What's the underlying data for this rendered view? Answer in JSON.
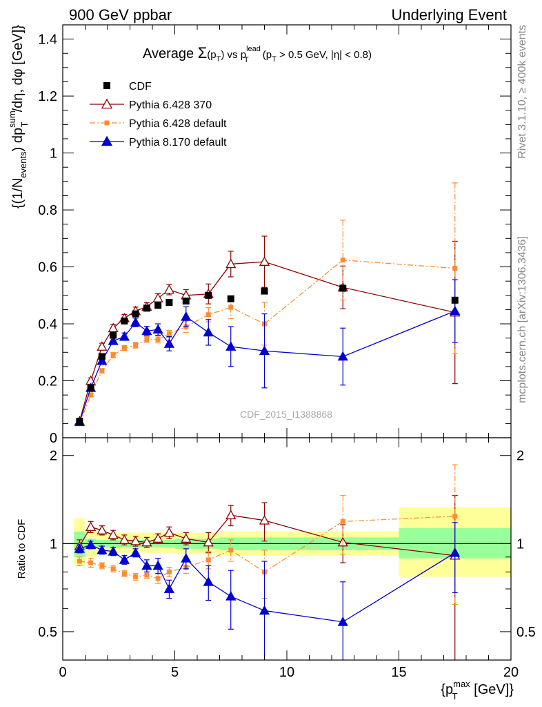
{
  "header": {
    "left": "900 GeV ppbar",
    "right": "Underlying Event"
  },
  "side_labels": {
    "rivet": "Rivet 3.1.10, ≥ 400k events",
    "mcplots": "mcplots.cern.ch [arXiv:1306.3436]"
  },
  "chart_data": [
    {
      "type": "line",
      "panel": "main",
      "title_parts": {
        "a": "Average ",
        "sigma": "Σ",
        "b": "(p",
        "sub_t": "T",
        "c": ") vs p",
        "sup_lead": "lead",
        "sub_t2": "T",
        "d": " (p",
        "sub_t3": "T",
        "e": " > 0.5 GeV, |η| < 0.8)"
      },
      "ylabel_parts": {
        "a": "{(1/N",
        "sub_events": "events",
        "b": ") dp",
        "sup_sum": "sum",
        "sub_t": "T",
        "c": "/dη, dφ [GeV]}"
      },
      "watermark": "CDF_2015_I1388868",
      "xlim": [
        0,
        20
      ],
      "ylim": [
        0,
        1.45
      ],
      "yticks": [
        0,
        0.2,
        0.4,
        0.6,
        0.8,
        1,
        1.2,
        1.4
      ],
      "ytick_labels": [
        "0",
        "0.2",
        "0.4",
        "0.6",
        "0.8",
        "1",
        "1.2",
        "1.4"
      ],
      "legend_position": "top-left",
      "series": [
        {
          "name": "CDF",
          "color": "#000000",
          "marker": "square",
          "line": "none",
          "x": [
            0.75,
            1.25,
            1.75,
            2.25,
            2.75,
            3.25,
            3.75,
            4.25,
            4.75,
            5.5,
            6.5,
            7.5,
            9,
            12.5,
            17.5
          ],
          "y": [
            0.058,
            0.175,
            0.285,
            0.36,
            0.41,
            0.435,
            0.455,
            0.465,
            0.475,
            0.48,
            0.5,
            0.488,
            0.515,
            0.525,
            0.483
          ],
          "err": [
            0,
            0,
            0,
            0,
            0,
            0,
            0,
            0,
            0,
            0,
            0,
            0,
            0,
            0,
            0
          ]
        },
        {
          "name": "Pythia 6.428 370",
          "color": "#8b0000",
          "marker": "open-triangle",
          "line": "solid",
          "x": [
            0.75,
            1.25,
            1.75,
            2.25,
            2.75,
            3.25,
            3.75,
            4.25,
            4.75,
            5.5,
            6.5,
            7.5,
            9,
            12.5,
            17.5
          ],
          "y": [
            0.058,
            0.2,
            0.32,
            0.385,
            0.42,
            0.445,
            0.46,
            0.49,
            0.52,
            0.5,
            0.505,
            0.61,
            0.618,
            0.528,
            0.44
          ],
          "err": [
            0.005,
            0.01,
            0.012,
            0.013,
            0.013,
            0.014,
            0.014,
            0.016,
            0.018,
            0.02,
            0.035,
            0.045,
            0.09,
            0.075,
            0.25
          ]
        },
        {
          "name": "Pythia 6.428 default",
          "color": "#ff8c2e",
          "marker": "square",
          "line": "dashdot",
          "x": [
            0.75,
            1.25,
            1.75,
            2.25,
            2.75,
            3.25,
            3.75,
            4.25,
            4.75,
            5.5,
            6.5,
            7.5,
            9,
            12.5,
            17.5
          ],
          "y": [
            0.05,
            0.15,
            0.235,
            0.29,
            0.315,
            0.325,
            0.345,
            0.345,
            0.365,
            0.39,
            0.432,
            0.458,
            0.4,
            0.624,
            0.595
          ],
          "err": [
            0.003,
            0.006,
            0.008,
            0.009,
            0.009,
            0.01,
            0.01,
            0.012,
            0.012,
            0.02,
            0.025,
            0.04,
            0.075,
            0.14,
            0.3
          ]
        },
        {
          "name": "Pythia 8.170 default",
          "color": "#0000d0",
          "marker": "filled-triangle",
          "line": "solid",
          "x": [
            0.75,
            1.25,
            1.75,
            2.25,
            2.75,
            3.25,
            3.75,
            4.25,
            4.75,
            5.5,
            6.5,
            7.5,
            9,
            12.5,
            17.5
          ],
          "y": [
            0.055,
            0.175,
            0.27,
            0.34,
            0.355,
            0.405,
            0.375,
            0.38,
            0.33,
            0.425,
            0.37,
            0.32,
            0.305,
            0.285,
            0.445
          ],
          "err": [
            0.004,
            0.008,
            0.01,
            0.012,
            0.013,
            0.015,
            0.016,
            0.02,
            0.025,
            0.035,
            0.045,
            0.07,
            0.13,
            0.1,
            0.11
          ]
        }
      ]
    },
    {
      "type": "line",
      "panel": "ratio",
      "ylabel": "Ratio to CDF",
      "xlabel_parts": {
        "a": "{p",
        "sup_max": "max",
        "sub_t": "T",
        "b": " [GeV]}"
      },
      "xlim": [
        0,
        20
      ],
      "ylim": [
        0.4,
        2.3
      ],
      "ylog": true,
      "xticks": [
        0,
        5,
        10,
        15,
        20
      ],
      "xtick_labels": [
        "0",
        "5",
        "10",
        "15",
        "20"
      ],
      "yticks": [
        0.5,
        1,
        2
      ],
      "ytick_labels": [
        "0.5",
        "1",
        "2"
      ],
      "reference_bands": {
        "bins": [
          [
            0.5,
            1
          ],
          [
            1,
            1.5
          ],
          [
            1.5,
            2
          ],
          [
            2,
            2.5
          ],
          [
            2.5,
            3
          ],
          [
            3,
            3.5
          ],
          [
            3.5,
            4
          ],
          [
            4,
            4.5
          ],
          [
            4.5,
            5
          ],
          [
            5,
            6
          ],
          [
            6,
            7
          ],
          [
            7,
            8
          ],
          [
            8,
            10
          ],
          [
            10,
            15
          ],
          [
            15,
            20
          ]
        ],
        "stat_low": [
          0.9,
          0.96,
          0.97,
          0.97,
          0.97,
          0.97,
          0.97,
          0.97,
          0.97,
          0.96,
          0.96,
          0.95,
          0.95,
          0.95,
          0.89
        ],
        "stat_high": [
          1.1,
          1.04,
          1.03,
          1.03,
          1.03,
          1.03,
          1.03,
          1.03,
          1.03,
          1.04,
          1.04,
          1.05,
          1.05,
          1.05,
          1.13
        ],
        "total_low": [
          0.84,
          0.9,
          0.92,
          0.92,
          0.93,
          0.93,
          0.93,
          0.93,
          0.93,
          0.92,
          0.92,
          0.91,
          0.91,
          0.91,
          0.77
        ],
        "total_high": [
          1.22,
          1.13,
          1.1,
          1.09,
          1.09,
          1.09,
          1.09,
          1.09,
          1.09,
          1.09,
          1.09,
          1.1,
          1.1,
          1.1,
          1.33
        ]
      },
      "series": [
        {
          "name": "Pythia 6.428 370",
          "color": "#8b0000",
          "marker": "open-triangle",
          "line": "solid",
          "x": [
            0.75,
            1.25,
            1.75,
            2.25,
            2.75,
            3.25,
            3.75,
            4.25,
            4.75,
            5.5,
            6.5,
            7.5,
            9,
            12.5,
            17.5
          ],
          "y": [
            0.98,
            1.14,
            1.11,
            1.07,
            1.03,
            1.02,
            1.01,
            1.04,
            1.09,
            1.04,
            1.01,
            1.25,
            1.2,
            1.01,
            0.91
          ],
          "err": [
            0.05,
            0.05,
            0.04,
            0.04,
            0.04,
            0.04,
            0.04,
            0.04,
            0.05,
            0.05,
            0.08,
            0.1,
            0.18,
            0.15,
            0.55
          ]
        },
        {
          "name": "Pythia 6.428 default",
          "color": "#ff8c2e",
          "marker": "square",
          "line": "dashdot",
          "x": [
            0.75,
            1.25,
            1.75,
            2.25,
            2.75,
            3.25,
            3.75,
            4.25,
            4.75,
            5.5,
            6.5,
            7.5,
            9,
            12.5,
            17.5
          ],
          "y": [
            0.87,
            0.86,
            0.84,
            0.82,
            0.79,
            0.77,
            0.78,
            0.76,
            0.8,
            0.83,
            0.88,
            0.95,
            0.8,
            1.19,
            1.24
          ],
          "err": [
            0.03,
            0.03,
            0.02,
            0.02,
            0.02,
            0.02,
            0.02,
            0.03,
            0.03,
            0.04,
            0.06,
            0.08,
            0.15,
            0.27,
            0.62
          ]
        },
        {
          "name": "Pythia 8.170 default",
          "color": "#0000d0",
          "marker": "filled-triangle",
          "line": "solid",
          "x": [
            0.75,
            1.25,
            1.75,
            2.25,
            2.75,
            3.25,
            3.75,
            4.25,
            4.75,
            5.5,
            6.5,
            7.5,
            9,
            12.5,
            17.5
          ],
          "y": [
            0.96,
            0.99,
            0.95,
            0.94,
            0.88,
            0.93,
            0.84,
            0.84,
            0.7,
            0.89,
            0.74,
            0.66,
            0.59,
            0.54,
            0.93
          ],
          "err": [
            0.03,
            0.03,
            0.03,
            0.03,
            0.03,
            0.03,
            0.04,
            0.05,
            0.05,
            0.07,
            0.1,
            0.15,
            0.28,
            0.2,
            0.25
          ]
        }
      ]
    }
  ]
}
